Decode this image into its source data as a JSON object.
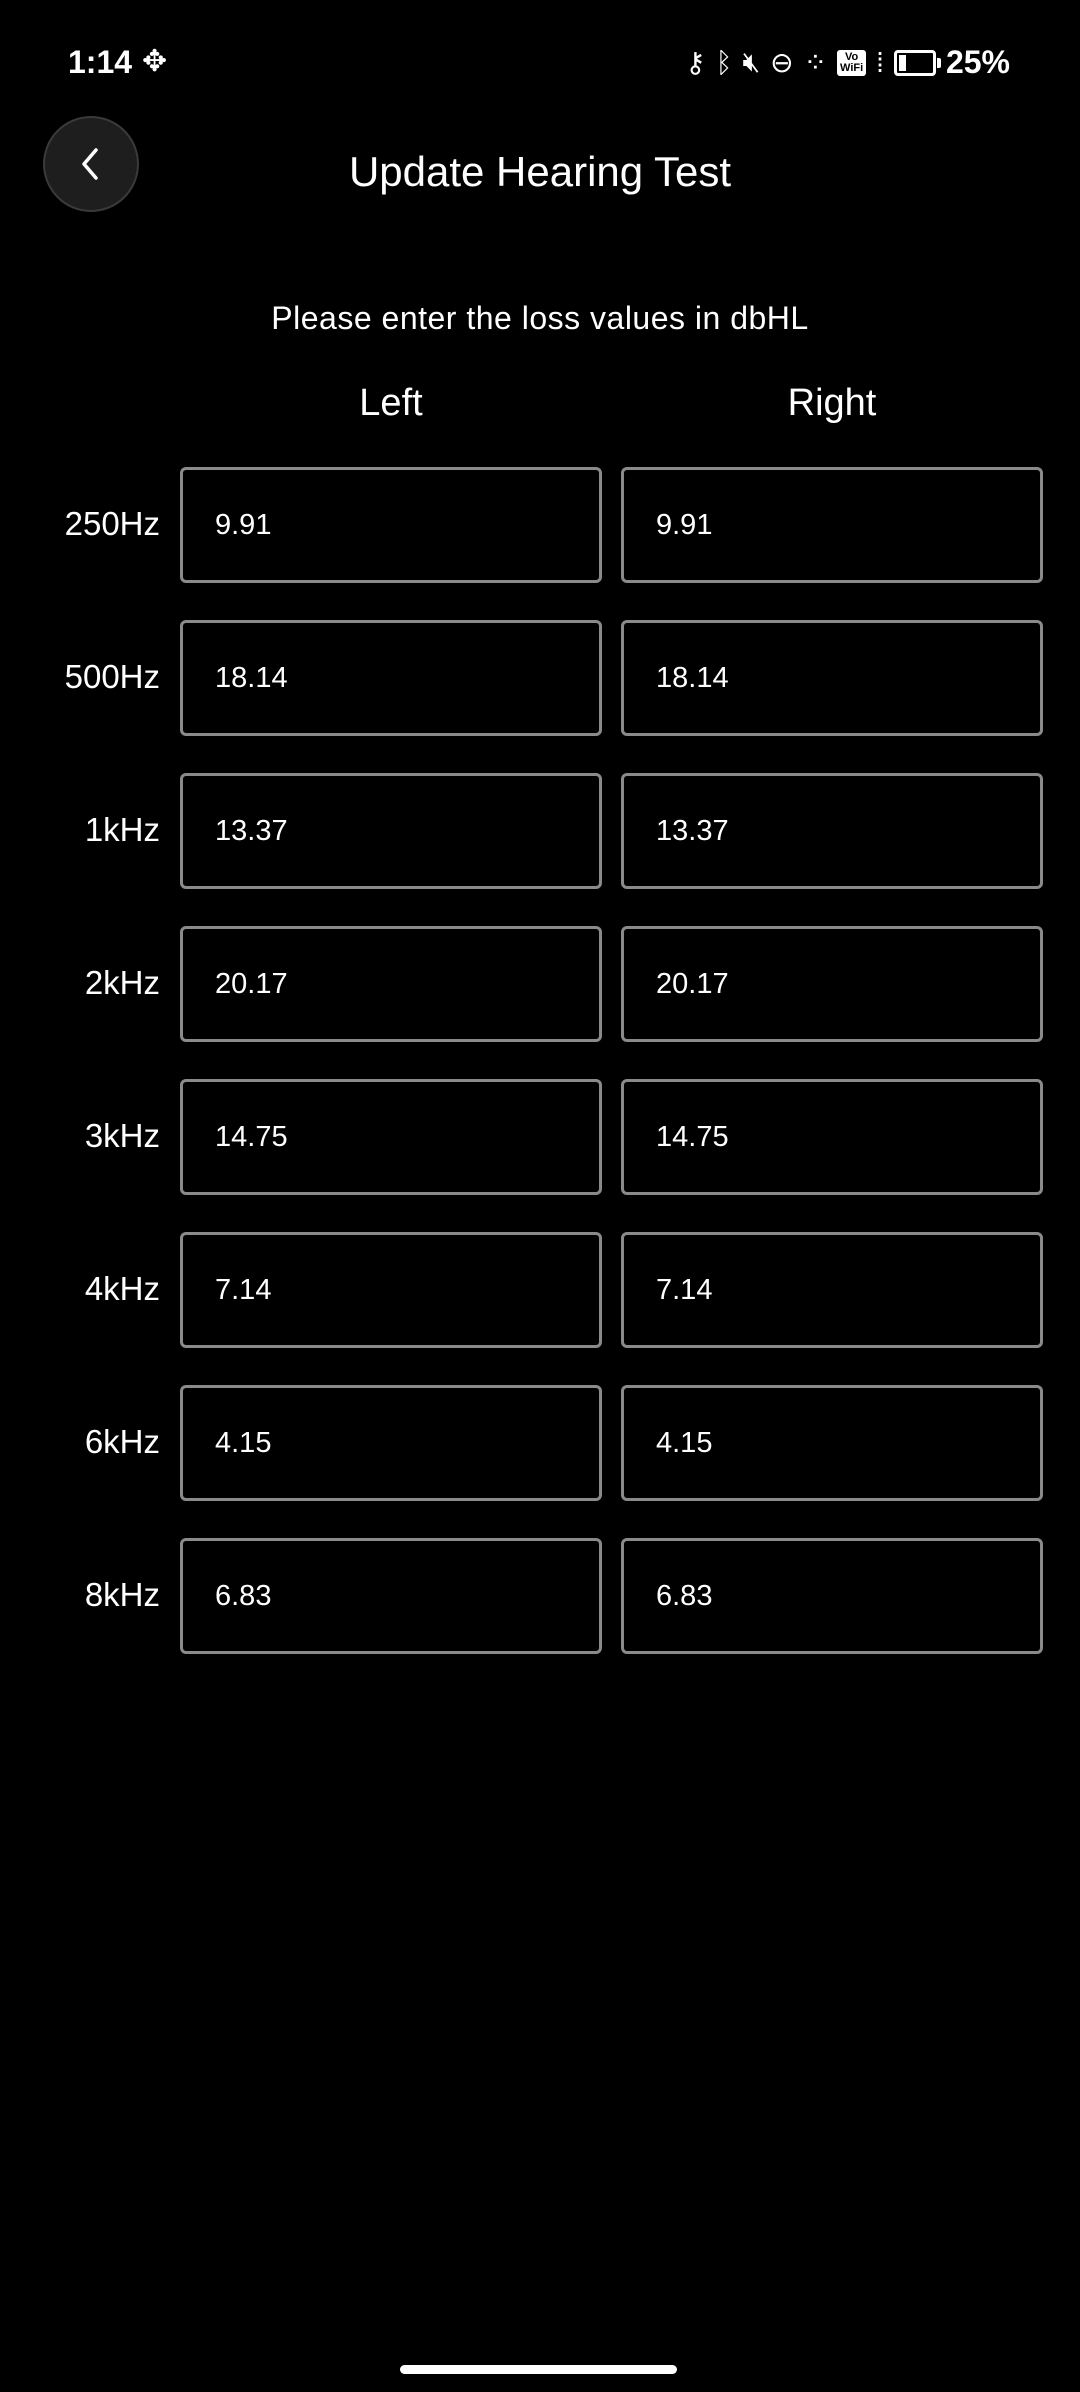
{
  "status_bar": {
    "time": "1:14",
    "battery_percent": "25%",
    "vowifi_label": "Vo\nWiFi",
    "icons": [
      "vpn-key-icon",
      "bluetooth-icon",
      "mute-icon",
      "do-not-disturb-icon",
      "signal-dots-icon",
      "vowifi-icon",
      "cell-signal-icon",
      "battery-icon"
    ]
  },
  "header": {
    "title": "Update Hearing Test",
    "back_icon": "chevron-left-icon"
  },
  "form": {
    "instruction": "Please enter the loss values in dbHL",
    "left_label": "Left",
    "right_label": "Right",
    "rows": [
      {
        "freq": "250Hz",
        "left": "9.91",
        "right": "9.91"
      },
      {
        "freq": "500Hz",
        "left": "18.14",
        "right": "18.14"
      },
      {
        "freq": "1kHz",
        "left": "13.37",
        "right": "13.37"
      },
      {
        "freq": "2kHz",
        "left": "20.17",
        "right": "20.17"
      },
      {
        "freq": "3kHz",
        "left": "14.75",
        "right": "14.75"
      },
      {
        "freq": "4kHz",
        "left": "7.14",
        "right": "7.14"
      },
      {
        "freq": "6kHz",
        "left": "4.15",
        "right": "4.15"
      },
      {
        "freq": "8kHz",
        "left": "6.83",
        "right": "6.83"
      }
    ]
  }
}
